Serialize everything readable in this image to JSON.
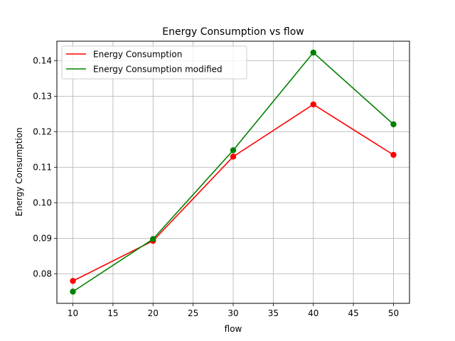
{
  "chart_data": {
    "type": "line",
    "title": "Energy Consumption vs flow",
    "xlabel": "flow",
    "ylabel": "Energy Consumption",
    "x": [
      10,
      20,
      30,
      40,
      50
    ],
    "xlim": [
      8,
      52
    ],
    "ylim": [
      0.0717,
      0.1455
    ],
    "xticks": [
      10,
      15,
      20,
      25,
      30,
      35,
      40,
      45,
      50
    ],
    "yticks": [
      0.08,
      0.09,
      0.1,
      0.11,
      0.12,
      0.13,
      0.14
    ],
    "ytick_labels": [
      "0.08",
      "0.09",
      "0.10",
      "0.11",
      "0.12",
      "0.13",
      "0.14"
    ],
    "grid": true,
    "legend_position": "upper-left",
    "series": [
      {
        "name": "Energy Consumption",
        "color": "#ff0000",
        "values": [
          0.078,
          0.0893,
          0.113,
          0.1277,
          0.1135
        ]
      },
      {
        "name": "Energy Consumption modified",
        "color": "#008000",
        "values": [
          0.075,
          0.0898,
          0.1148,
          0.1423,
          0.1221
        ]
      }
    ]
  }
}
